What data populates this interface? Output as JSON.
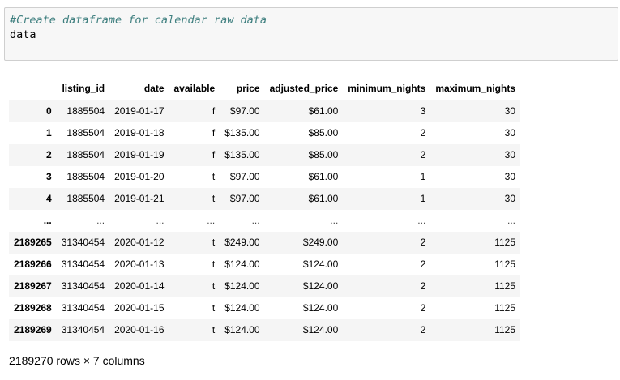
{
  "code_cell": {
    "comment": "#Create dataframe for calendar raw data",
    "code": "data"
  },
  "table": {
    "columns": [
      "",
      "listing_id",
      "date",
      "available",
      "price",
      "adjusted_price",
      "minimum_nights",
      "maximum_nights"
    ],
    "rows": [
      {
        "index": "0",
        "cells": [
          "1885504",
          "2019-01-17",
          "f",
          "$97.00",
          "$61.00",
          "3",
          "30"
        ]
      },
      {
        "index": "1",
        "cells": [
          "1885504",
          "2019-01-18",
          "f",
          "$135.00",
          "$85.00",
          "2",
          "30"
        ]
      },
      {
        "index": "2",
        "cells": [
          "1885504",
          "2019-01-19",
          "f",
          "$135.00",
          "$85.00",
          "2",
          "30"
        ]
      },
      {
        "index": "3",
        "cells": [
          "1885504",
          "2019-01-20",
          "t",
          "$97.00",
          "$61.00",
          "1",
          "30"
        ]
      },
      {
        "index": "4",
        "cells": [
          "1885504",
          "2019-01-21",
          "t",
          "$97.00",
          "$61.00",
          "1",
          "30"
        ]
      },
      {
        "index": "...",
        "cells": [
          "...",
          "...",
          "...",
          "...",
          "...",
          "...",
          "..."
        ]
      },
      {
        "index": "2189265",
        "cells": [
          "31340454",
          "2020-01-12",
          "t",
          "$249.00",
          "$249.00",
          "2",
          "1125"
        ]
      },
      {
        "index": "2189266",
        "cells": [
          "31340454",
          "2020-01-13",
          "t",
          "$124.00",
          "$124.00",
          "2",
          "1125"
        ]
      },
      {
        "index": "2189267",
        "cells": [
          "31340454",
          "2020-01-14",
          "t",
          "$124.00",
          "$124.00",
          "2",
          "1125"
        ]
      },
      {
        "index": "2189268",
        "cells": [
          "31340454",
          "2020-01-15",
          "t",
          "$124.00",
          "$124.00",
          "2",
          "1125"
        ]
      },
      {
        "index": "2189269",
        "cells": [
          "31340454",
          "2020-01-16",
          "t",
          "$124.00",
          "$124.00",
          "2",
          "1125"
        ]
      }
    ]
  },
  "shape_note": "2189270 rows × 7 columns"
}
